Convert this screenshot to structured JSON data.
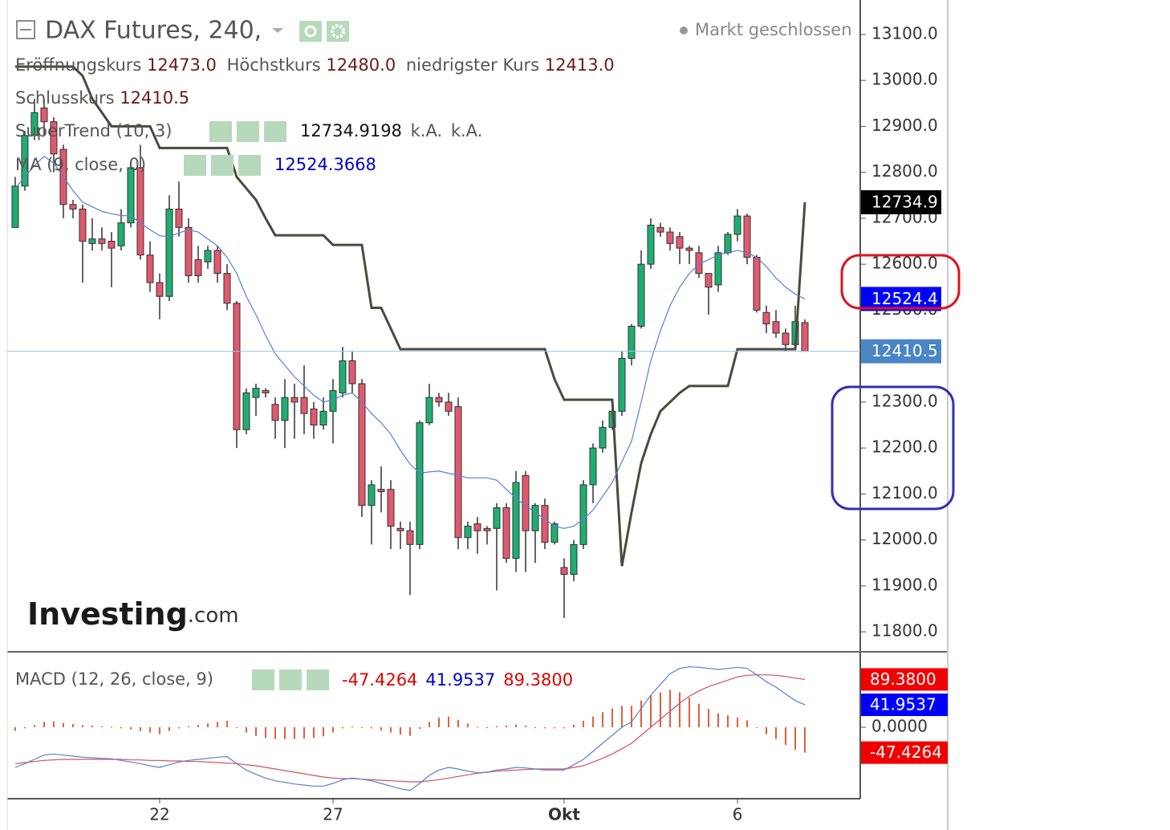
{
  "chart_data": [
    {
      "type": "candlestick",
      "title": "DAX Futures, 240,",
      "status": "Markt geschlossen",
      "ohlc_legend": [
        {
          "name": "Eröffnungskurs",
          "value": "12473.0"
        },
        {
          "name": "Höchstkurs",
          "value": "12480.0"
        },
        {
          "name": "niedrigster Kurs",
          "value": "12413.0"
        },
        {
          "name": "Schlusskurs",
          "value": "12410.5"
        }
      ],
      "xlim": [
        -0.83,
        87.75
      ],
      "xticks": [
        {
          "value": 15,
          "label": "22"
        },
        {
          "value": 33,
          "label": "27"
        },
        {
          "value": 57,
          "label": "Okt"
        },
        {
          "value": 75,
          "label": "6"
        }
      ],
      "ylim": [
        11760,
        13175
      ],
      "yticks": [
        {
          "value": 11800,
          "label": "11800.0"
        },
        {
          "value": 11900,
          "label": "11900.0"
        },
        {
          "value": 12000,
          "label": "12000.0"
        },
        {
          "value": 12100,
          "label": "12100.0"
        },
        {
          "value": 12200,
          "label": "12200.0"
        },
        {
          "value": 12300,
          "label": "12300.0"
        },
        {
          "value": 12500,
          "label": "12500.0"
        },
        {
          "value": 12600,
          "label": "12600.0"
        },
        {
          "value": 12700,
          "label": "12700.0"
        },
        {
          "value": 12800,
          "label": "12800.0"
        },
        {
          "value": 12900,
          "label": "12900.0"
        },
        {
          "value": 13000,
          "label": "13000.0"
        },
        {
          "value": 13100,
          "label": "13100.0"
        }
      ],
      "up_color": "#1fae72",
      "down_color": "#e0596e",
      "open": [
        12680,
        12770,
        12880,
        12940,
        12910,
        12850,
        12730,
        12720,
        12645,
        12655,
        12650,
        12640,
        12690,
        12810,
        12620,
        12560,
        12530,
        12720,
        12680,
        12610,
        12605,
        12630,
        12580,
        12515,
        12240,
        12310,
        12325,
        12295,
        12260,
        12310,
        12310,
        12285,
        12250,
        12280,
        12320,
        12390,
        12340,
        12075,
        12110,
        12110,
        12025,
        12020,
        11990,
        12255,
        12310,
        12300,
        12290,
        12005,
        12035,
        12025,
        12025,
        12070,
        11960,
        12140,
        12020,
        12075,
        11995,
        11940,
        11925,
        11990,
        12120,
        12200,
        12245,
        12280,
        12395,
        12465,
        12600,
        12680,
        12670,
        12660,
        12635,
        12625,
        12580,
        12555,
        12625,
        12665,
        12705,
        12615,
        12495,
        12475,
        12450,
        12425,
        12473
      ],
      "high": [
        12790,
        12890,
        12960,
        12960,
        12920,
        12860,
        12740,
        12730,
        12700,
        12680,
        12670,
        12720,
        12820,
        12860,
        12650,
        12580,
        12750,
        12780,
        12700,
        12640,
        12640,
        12640,
        12600,
        12520,
        12330,
        12340,
        12330,
        12310,
        12350,
        12340,
        12380,
        12300,
        12310,
        12350,
        12420,
        12410,
        12350,
        12130,
        12160,
        12130,
        12040,
        12040,
        12260,
        12340,
        12320,
        12320,
        12310,
        12040,
        12050,
        12030,
        12080,
        12080,
        12150,
        12150,
        12080,
        12090,
        12040,
        11960,
        12000,
        12130,
        12210,
        12260,
        12290,
        12410,
        12470,
        12630,
        12700,
        12690,
        12680,
        12670,
        12640,
        12640,
        12580,
        12640,
        12670,
        12720,
        12710,
        12620,
        12510,
        12500,
        12460,
        12510,
        12480
      ],
      "low": [
        12680,
        12760,
        12870,
        12880,
        12800,
        12700,
        12700,
        12560,
        12630,
        12630,
        12550,
        12630,
        12680,
        12610,
        12540,
        12480,
        12520,
        12660,
        12560,
        12560,
        12590,
        12560,
        12500,
        12200,
        12230,
        12270,
        12310,
        12220,
        12200,
        12220,
        12230,
        12220,
        12240,
        12210,
        12310,
        12320,
        12050,
        11990,
        12060,
        11980,
        11980,
        11880,
        11980,
        12250,
        12290,
        12270,
        11980,
        11980,
        11970,
        11990,
        11890,
        11950,
        11930,
        11930,
        11950,
        11980,
        11990,
        11830,
        11910,
        11980,
        12080,
        12190,
        12240,
        12270,
        12380,
        12460,
        12590,
        12660,
        12630,
        12600,
        12600,
        12570,
        12490,
        12540,
        12620,
        12650,
        12600,
        12495,
        12450,
        12440,
        12410,
        12420,
        12413
      ],
      "close": [
        12770,
        12880,
        12930,
        12910,
        12840,
        12730,
        12720,
        12650,
        12655,
        12645,
        12635,
        12690,
        12810,
        12620,
        12560,
        12530,
        12720,
        12680,
        12575,
        12575,
        12630,
        12580,
        12515,
        12240,
        12320,
        12330,
        12320,
        12260,
        12310,
        12300,
        12275,
        12250,
        12280,
        12325,
        12390,
        12340,
        12075,
        12120,
        12105,
        12030,
        12020,
        11990,
        12255,
        12310,
        12300,
        12280,
        12005,
        12030,
        12020,
        12020,
        12070,
        11960,
        12125,
        12020,
        12075,
        11995,
        12035,
        11925,
        11990,
        12120,
        12200,
        12245,
        12280,
        12395,
        12465,
        12600,
        12685,
        12670,
        12645,
        12635,
        12630,
        12580,
        12550,
        12625,
        12665,
        12705,
        12615,
        12500,
        12470,
        12450,
        12425,
        12475,
        12410.5
      ],
      "indicators": [
        {
          "name": "SuperTrend (10, 3)",
          "readouts": [
            "12734.9198",
            "k.A.",
            "k.A."
          ],
          "color": "#4a4a3c",
          "values": [
            13030,
            13030,
            13030,
            13030,
            13030,
            13030,
            13030,
            13010,
            12960,
            12930,
            12900,
            12900,
            12900,
            12900,
            12900,
            12853,
            12853,
            12853,
            12853,
            12853,
            12853,
            12853,
            12853,
            12790,
            12765,
            12740,
            12700,
            12663,
            12663,
            12663,
            12663,
            12663,
            12663,
            12642,
            12642,
            12642,
            12642,
            12505,
            12505,
            12460,
            12415,
            12415,
            12415,
            12415,
            12415,
            12415,
            12415,
            12415,
            12415,
            12415,
            12415,
            12415,
            12415,
            12415,
            12415,
            12415,
            12350,
            12305,
            12305,
            12305,
            12305,
            12305,
            12305,
            11943,
            12060,
            12167,
            12230,
            12280,
            12300,
            12320,
            12335,
            12335,
            12335,
            12335,
            12335,
            12415,
            12415,
            12415,
            12415,
            12415,
            12415,
            12415,
            12734.9198
          ]
        },
        {
          "name": "MA (9, close, 0)",
          "readouts": [
            "12524.3668"
          ],
          "color": "#5b7fd0",
          "values": [
            12765,
            12790,
            12815,
            12835,
            12820,
            12790,
            12760,
            12735,
            12725,
            12715,
            12710,
            12706,
            12705,
            12690,
            12675,
            12662,
            12660,
            12668,
            12675,
            12670,
            12655,
            12640,
            12615,
            12580,
            12530,
            12490,
            12445,
            12405,
            12380,
            12355,
            12335,
            12315,
            12300,
            12305,
            12315,
            12320,
            12300,
            12275,
            12255,
            12230,
            12195,
            12165,
            12145,
            12148,
            12150,
            12145,
            12140,
            12135,
            12135,
            12135,
            12130,
            12110,
            12090,
            12075,
            12060,
            12045,
            12030,
            12025,
            12030,
            12045,
            12065,
            12095,
            12125,
            12170,
            12215,
            12300,
            12390,
            12455,
            12510,
            12550,
            12580,
            12600,
            12610,
            12620,
            12625,
            12630,
            12625,
            12615,
            12595,
            12570,
            12550,
            12535,
            12524.3668
          ]
        }
      ],
      "last_price": {
        "value": 12410.5,
        "label": "12410.5",
        "color": "#4a86c5"
      },
      "price_labels": [
        {
          "value": 12734.9,
          "label": "12734.9",
          "color": "#000000"
        },
        {
          "value": 12524.4,
          "label": "12524.4",
          "color": "#0000ff"
        }
      ],
      "watermark": {
        "brand": "Investing",
        "suffix": ".com"
      }
    },
    {
      "type": "macd",
      "name": "MACD (12, 26, close, 9)",
      "readouts": [
        "-47.4264",
        "41.9537",
        "89.3800"
      ],
      "readout_colors": [
        "#e00000",
        "#0000cc",
        "#e00000"
      ],
      "ylim": [
        -133.5,
        141
      ],
      "yticks": [
        {
          "value": 0,
          "label": "0.0000"
        }
      ],
      "histogram_color": "#e0603c",
      "macd_color": "#5b7fd0",
      "signal_color": "#d05060",
      "histogram": [
        -7,
        -2,
        4,
        10,
        11,
        8,
        6,
        4,
        3,
        2,
        1,
        -2,
        -4,
        -7,
        -10,
        -13,
        -7,
        -2,
        2,
        4,
        7,
        10,
        12,
        0,
        -10,
        -16,
        -20,
        -22,
        -22,
        -22,
        -21,
        -20,
        -17,
        -10,
        -2,
        1,
        0,
        -2,
        -6,
        -10,
        -14,
        -16,
        -3,
        10,
        18,
        20,
        14,
        7,
        1,
        0,
        2,
        3,
        5,
        3,
        0,
        -2,
        -2,
        -2,
        5,
        12,
        20,
        28,
        35,
        40,
        40,
        50,
        60,
        65,
        70,
        65,
        55,
        44,
        34,
        26,
        22,
        18,
        13,
        0,
        -13,
        -22,
        -33,
        -42,
        -47.4264
      ],
      "macd": [
        -75,
        -68,
        -60,
        -52,
        -50,
        -52,
        -54,
        -56,
        -57,
        -58,
        -59,
        -62,
        -65,
        -68,
        -72,
        -75,
        -70,
        -65,
        -62,
        -60,
        -58,
        -56,
        -55,
        -68,
        -80,
        -88,
        -95,
        -100,
        -103,
        -106,
        -108,
        -110,
        -110,
        -105,
        -98,
        -95,
        -97,
        -100,
        -105,
        -110,
        -115,
        -118,
        -105,
        -90,
        -80,
        -75,
        -78,
        -82,
        -85,
        -84,
        -80,
        -78,
        -75,
        -76,
        -78,
        -80,
        -80,
        -80,
        -70,
        -60,
        -45,
        -30,
        -15,
        0,
        10,
        35,
        60,
        80,
        100,
        110,
        113,
        112,
        110,
        108,
        110,
        112,
        110,
        98,
        85,
        75,
        62,
        50,
        41.9537
      ],
      "signal": [
        -68,
        -66,
        -64,
        -62,
        -61,
        -60,
        -60,
        -60,
        -60,
        -60,
        -60,
        -60,
        -61,
        -61,
        -62,
        -62,
        -63,
        -63,
        -64,
        -64,
        -65,
        -66,
        -67,
        -68,
        -70,
        -72,
        -75,
        -78,
        -81,
        -84,
        -87,
        -90,
        -93,
        -95,
        -96,
        -96,
        -97,
        -98,
        -99,
        -100,
        -101,
        -102,
        -102,
        -100,
        -98,
        -95,
        -92,
        -89,
        -86,
        -84,
        -82,
        -81,
        -80,
        -79,
        -78,
        -78,
        -78,
        -78,
        -75,
        -72,
        -65,
        -58,
        -50,
        -40,
        -30,
        -15,
        0,
        15,
        30,
        45,
        58,
        68,
        76,
        82,
        88,
        94,
        97,
        98,
        98,
        97,
        95,
        92,
        89.38
      ],
      "price_labels": [
        {
          "value": 89.38,
          "label": "89.3800",
          "color": "#f00000"
        },
        {
          "value": 41.9537,
          "label": "41.9537",
          "color": "#0000ff"
        },
        {
          "value": -47.4264,
          "label": "-47.4264",
          "color": "#f00000"
        }
      ]
    }
  ]
}
